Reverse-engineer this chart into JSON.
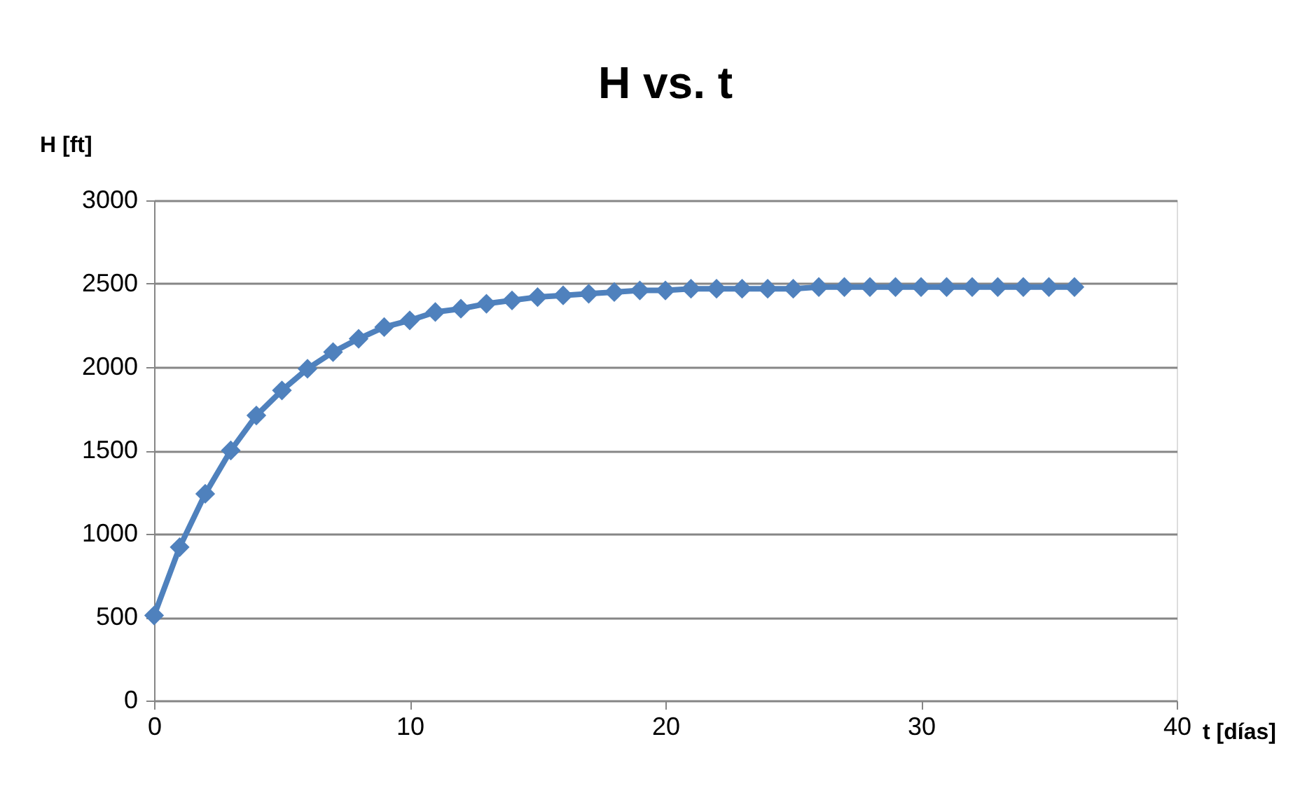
{
  "chart_data": {
    "type": "line",
    "title": "H vs. t",
    "xlabel": "t [días]",
    "ylabel": "H [ft]",
    "x": [
      0,
      1,
      2,
      3,
      4,
      5,
      6,
      7,
      8,
      9,
      10,
      11,
      12,
      13,
      14,
      15,
      16,
      17,
      18,
      19,
      20,
      21,
      22,
      23,
      24,
      25,
      26,
      27,
      28,
      29,
      30,
      31,
      32,
      33,
      34,
      35,
      36
    ],
    "series": [
      {
        "color": "#4f81bd",
        "values": [
          510,
          920,
          1240,
          1500,
          1710,
          1860,
          1990,
          2090,
          2170,
          2240,
          2280,
          2330,
          2350,
          2380,
          2400,
          2420,
          2430,
          2440,
          2450,
          2460,
          2460,
          2470,
          2470,
          2470,
          2470,
          2470,
          2480,
          2480,
          2480,
          2480,
          2480,
          2480,
          2480,
          2480,
          2480,
          2480,
          2480
        ]
      }
    ],
    "xlim": [
      0,
      40
    ],
    "xticks": [
      0,
      10,
      20,
      30,
      40
    ],
    "ylim": [
      0,
      3000
    ],
    "yticks": [
      0,
      500,
      1000,
      1500,
      2000,
      2500,
      3000
    ],
    "grid": "y",
    "marker": "diamond",
    "line_style": "solid"
  }
}
